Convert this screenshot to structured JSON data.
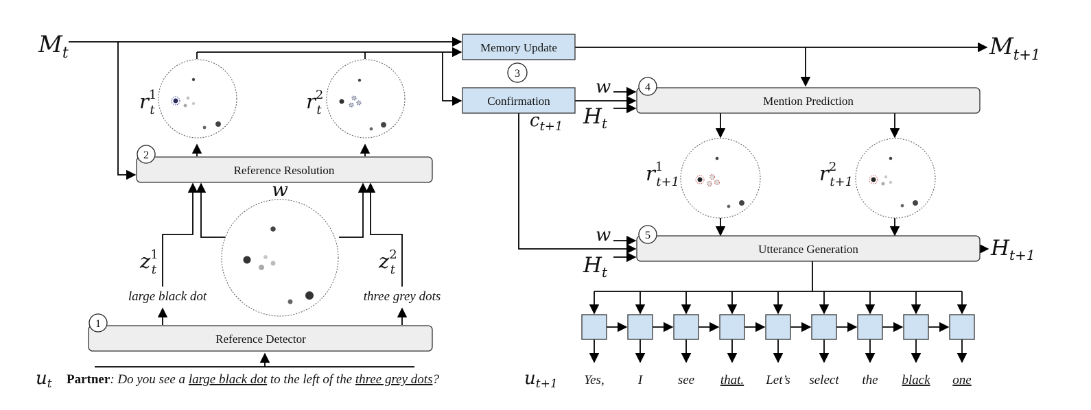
{
  "modules": {
    "memory_update": "Memory Update",
    "confirmation": "Confirmation",
    "mention_prediction": "Mention Prediction",
    "reference_resolution": "Reference Resolution",
    "utterance_generation": "Utterance Generation",
    "reference_detector": "Reference Detector"
  },
  "step_numbers": [
    "1",
    "2",
    "3",
    "4",
    "5"
  ],
  "symbols": {
    "M": "M",
    "t": "t",
    "t_plus_1": "t+1",
    "r": "r",
    "z": "z",
    "w": "w",
    "H": "H",
    "c": "c",
    "u": "u",
    "sup1": "1",
    "sup2": "2"
  },
  "mentions": {
    "large_black_dot": "large black dot",
    "three_grey_dots": "three grey dots"
  },
  "partner_utterance": {
    "speaker": "Partner",
    "colon": ": ",
    "part1": "Do you see a ",
    "mention1": "large black dot",
    "part2": " to the left of the ",
    "mention2": "three grey dots",
    "end": "?"
  },
  "generated_tokens": [
    "Yes,",
    "I",
    "see",
    "that.",
    "Let’s",
    "select",
    "the",
    "black",
    "one"
  ],
  "underlined_tokens": [
    3,
    7,
    8
  ],
  "colors": {
    "module_fill": "#eeeeee",
    "highlight_fill": "#cfe2f3",
    "selection_blue": "#3a4a9a",
    "selection_red": "#c0504d"
  }
}
